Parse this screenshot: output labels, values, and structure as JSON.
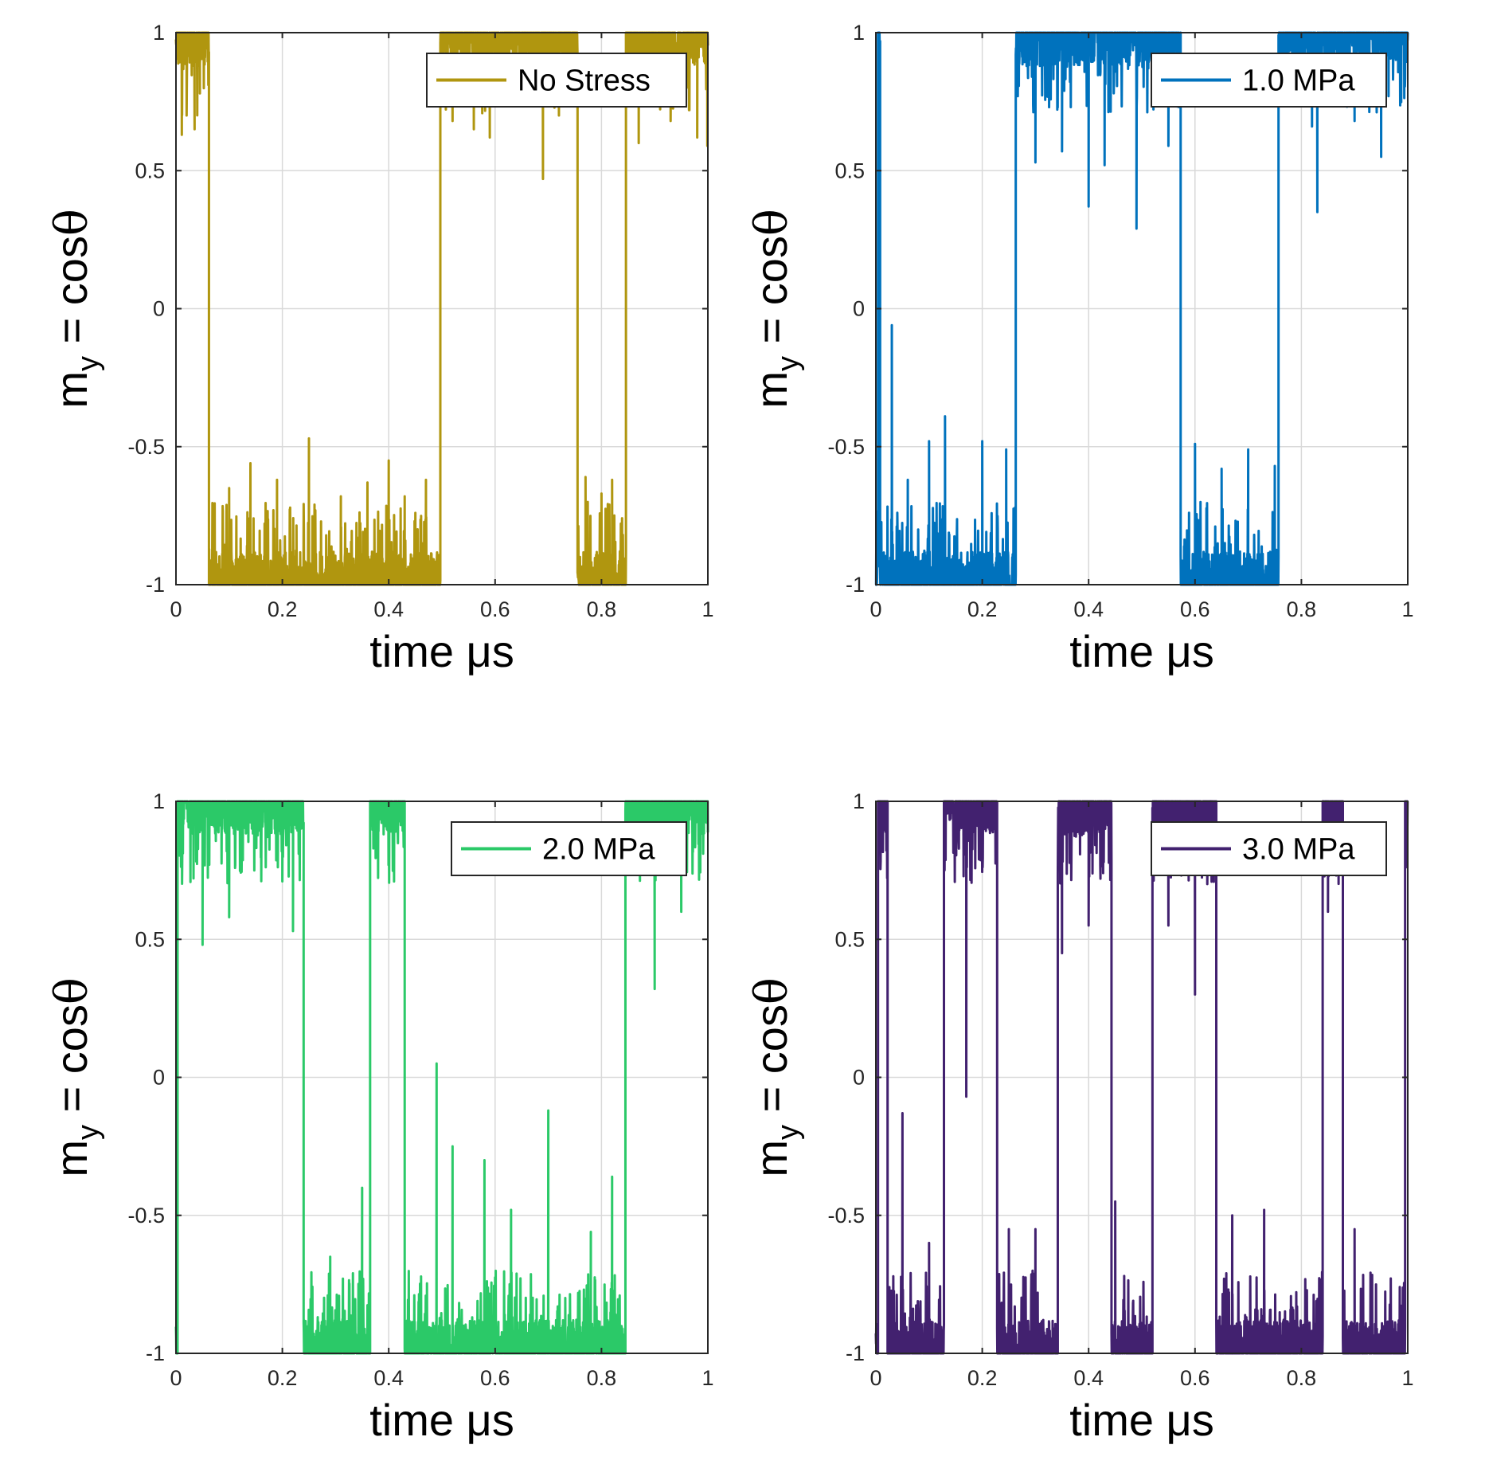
{
  "figure": {
    "background": "#ffffff",
    "xlabel_prefix": "time ",
    "xlabel_unit": "μs",
    "ylabel_base": "m",
    "ylabel_sub": "y",
    "ylabel_eq": " = cos",
    "ylabel_theta": "θ"
  },
  "chart_data": [
    {
      "type": "line",
      "legend": "No Stress",
      "color": "#B0960F",
      "xlim": [
        0,
        1
      ],
      "ylim": [
        -1,
        1
      ],
      "xticks": [
        "0",
        "0.2",
        "0.4",
        "0.6",
        "0.8",
        "1"
      ],
      "yticks": [
        "-1",
        "-0.5",
        "0",
        "0.5",
        "1"
      ],
      "grid": true,
      "legend_position": "top-right",
      "states": [
        [
          0,
          0.003,
          1
        ],
        [
          0.003,
          0.062,
          1
        ],
        [
          0.062,
          0.497,
          -1
        ],
        [
          0.497,
          0.755,
          1
        ],
        [
          0.755,
          0.846,
          -1
        ],
        [
          0.846,
          1.0,
          1
        ]
      ],
      "spikes": [
        [
          0.011,
          0.63
        ],
        [
          0.02,
          0.7
        ],
        [
          0.035,
          0.65
        ],
        [
          0.045,
          0.78
        ],
        [
          0.52,
          0.68
        ],
        [
          0.56,
          0.65
        ],
        [
          0.59,
          0.62
        ],
        [
          0.69,
          0.47
        ],
        [
          0.72,
          0.7
        ],
        [
          0.87,
          0.6
        ],
        [
          0.93,
          0.68
        ],
        [
          0.98,
          0.62
        ],
        [
          0.999,
          0.59
        ],
        [
          0.1,
          -0.65
        ],
        [
          0.14,
          -0.56
        ],
        [
          0.19,
          -0.62
        ],
        [
          0.25,
          -0.47
        ],
        [
          0.31,
          -0.68
        ],
        [
          0.36,
          -0.63
        ],
        [
          0.4,
          -0.55
        ],
        [
          0.43,
          -0.68
        ],
        [
          0.47,
          -0.62
        ],
        [
          0.77,
          -0.61
        ],
        [
          0.8,
          -0.67
        ],
        [
          0.82,
          -0.62
        ]
      ]
    },
    {
      "type": "line",
      "legend": "1.0 MPa",
      "color": "#0072BD",
      "xlim": [
        0,
        1
      ],
      "ylim": [
        -1,
        1
      ],
      "xticks": [
        "0",
        "0.2",
        "0.4",
        "0.6",
        "0.8",
        "1"
      ],
      "yticks": [
        "-1",
        "-0.5",
        "0",
        "0.5",
        "1"
      ],
      "grid": true,
      "legend_position": "top-right",
      "states": [
        [
          0,
          0.004,
          -1
        ],
        [
          0.004,
          0.008,
          1
        ],
        [
          0.008,
          0.263,
          -1
        ],
        [
          0.263,
          0.573,
          1
        ],
        [
          0.573,
          0.757,
          -1
        ],
        [
          0.757,
          1.0,
          1
        ]
      ],
      "spikes": [
        [
          0.03,
          -0.06
        ],
        [
          0.06,
          -0.62
        ],
        [
          0.1,
          -0.48
        ],
        [
          0.13,
          -0.39
        ],
        [
          0.2,
          -0.48
        ],
        [
          0.245,
          -0.51
        ],
        [
          0.3,
          0.53
        ],
        [
          0.35,
          0.57
        ],
        [
          0.4,
          0.37
        ],
        [
          0.43,
          0.52
        ],
        [
          0.49,
          0.29
        ],
        [
          0.55,
          0.59
        ],
        [
          0.6,
          -0.49
        ],
        [
          0.65,
          -0.58
        ],
        [
          0.7,
          -0.51
        ],
        [
          0.75,
          -0.57
        ],
        [
          0.82,
          0.66
        ],
        [
          0.83,
          0.35
        ],
        [
          0.9,
          0.68
        ],
        [
          0.95,
          0.55
        ]
      ]
    },
    {
      "type": "line",
      "legend": "2.0 MPa",
      "color": "#2BC968",
      "xlim": [
        0,
        1
      ],
      "ylim": [
        -1,
        1
      ],
      "xticks": [
        "0",
        "0.2",
        "0.4",
        "0.6",
        "0.8",
        "1"
      ],
      "yticks": [
        "-1",
        "-0.5",
        "0",
        "0.5",
        "1"
      ],
      "grid": true,
      "legend_position": "top-right",
      "states": [
        [
          0,
          0.003,
          -1
        ],
        [
          0.003,
          0.24,
          1
        ],
        [
          0.24,
          0.365,
          -1
        ],
        [
          0.365,
          0.43,
          1
        ],
        [
          0.43,
          0.845,
          -1
        ],
        [
          0.845,
          1.0,
          1
        ]
      ],
      "spikes": [
        [
          0.05,
          0.48
        ],
        [
          0.1,
          0.58
        ],
        [
          0.2,
          0.71
        ],
        [
          0.22,
          0.53
        ],
        [
          0.29,
          -0.65
        ],
        [
          0.35,
          -0.4
        ],
        [
          0.49,
          0.05
        ],
        [
          0.52,
          -0.25
        ],
        [
          0.58,
          -0.3
        ],
        [
          0.63,
          -0.48
        ],
        [
          0.7,
          -0.12
        ],
        [
          0.78,
          -0.56
        ],
        [
          0.82,
          -0.36
        ],
        [
          0.9,
          0.32
        ],
        [
          0.95,
          0.6
        ]
      ]
    },
    {
      "type": "line",
      "legend": "3.0 MPa",
      "color": "#42216F",
      "xlim": [
        0,
        1
      ],
      "ylim": [
        -1,
        1
      ],
      "xticks": [
        "0",
        "0.2",
        "0.4",
        "0.6",
        "0.8",
        "1"
      ],
      "yticks": [
        "-1",
        "-0.5",
        "0",
        "0.5",
        "1"
      ],
      "grid": true,
      "legend_position": "top-right",
      "states": [
        [
          0,
          0.004,
          -1
        ],
        [
          0.004,
          0.022,
          1
        ],
        [
          0.022,
          0.128,
          -1
        ],
        [
          0.128,
          0.228,
          1
        ],
        [
          0.228,
          0.342,
          -1
        ],
        [
          0.342,
          0.443,
          1
        ],
        [
          0.443,
          0.52,
          -1
        ],
        [
          0.52,
          0.64,
          1
        ],
        [
          0.64,
          0.84,
          -1
        ],
        [
          0.84,
          0.878,
          1
        ],
        [
          0.878,
          0.995,
          -1
        ],
        [
          0.995,
          1.0,
          1
        ]
      ],
      "spikes": [
        [
          0.05,
          -0.13
        ],
        [
          0.1,
          -0.6
        ],
        [
          0.17,
          -0.07
        ],
        [
          0.25,
          -0.55
        ],
        [
          0.3,
          -0.55
        ],
        [
          0.35,
          0.45
        ],
        [
          0.4,
          0.55
        ],
        [
          0.45,
          -0.45
        ],
        [
          0.55,
          0.55
        ],
        [
          0.6,
          0.3
        ],
        [
          0.67,
          -0.5
        ],
        [
          0.73,
          -0.48
        ],
        [
          0.85,
          0.6
        ],
        [
          0.9,
          -0.55
        ]
      ]
    }
  ]
}
